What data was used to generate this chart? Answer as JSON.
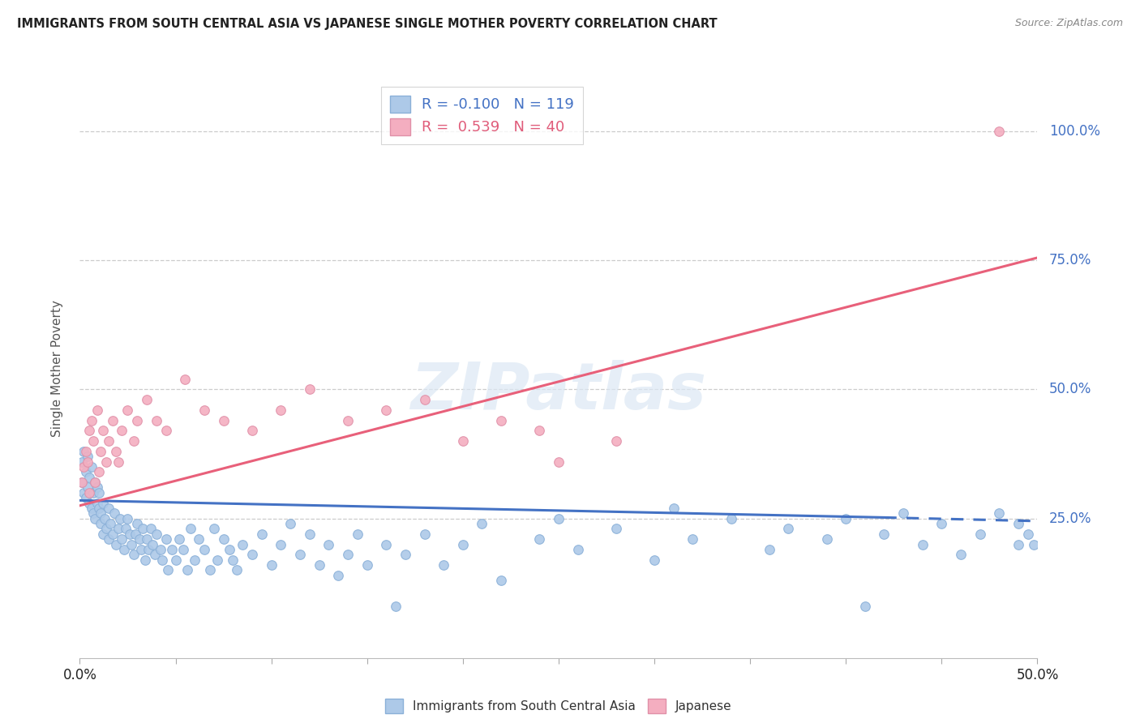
{
  "title": "IMMIGRANTS FROM SOUTH CENTRAL ASIA VS JAPANESE SINGLE MOTHER POVERTY CORRELATION CHART",
  "source": "Source: ZipAtlas.com",
  "ylabel": "Single Mother Poverty",
  "xlim": [
    0.0,
    0.5
  ],
  "ylim": [
    -0.02,
    1.1
  ],
  "blue_R": "-0.100",
  "blue_N": "119",
  "pink_R": "0.539",
  "pink_N": "40",
  "blue_color": "#adc9e8",
  "blue_line_color": "#4472c4",
  "pink_color": "#f4aec0",
  "pink_line_color": "#e8607a",
  "legend_label_blue": "Immigrants from South Central Asia",
  "legend_label_pink": "Japanese",
  "watermark": "ZIPatlas",
  "blue_line_x": [
    0.0,
    0.42,
    0.5
  ],
  "blue_line_y": [
    0.285,
    0.252,
    0.245
  ],
  "blue_line_solid_end": 0.42,
  "pink_line_x": [
    0.0,
    0.5
  ],
  "pink_line_y": [
    0.275,
    0.755
  ],
  "blue_scatter_x": [
    0.001,
    0.001,
    0.002,
    0.002,
    0.003,
    0.003,
    0.004,
    0.004,
    0.005,
    0.005,
    0.006,
    0.006,
    0.007,
    0.007,
    0.008,
    0.008,
    0.009,
    0.009,
    0.01,
    0.01,
    0.011,
    0.011,
    0.012,
    0.012,
    0.013,
    0.014,
    0.015,
    0.015,
    0.016,
    0.017,
    0.018,
    0.019,
    0.02,
    0.021,
    0.022,
    0.023,
    0.024,
    0.025,
    0.026,
    0.027,
    0.028,
    0.029,
    0.03,
    0.031,
    0.032,
    0.033,
    0.034,
    0.035,
    0.036,
    0.037,
    0.038,
    0.039,
    0.04,
    0.042,
    0.043,
    0.045,
    0.046,
    0.048,
    0.05,
    0.052,
    0.054,
    0.056,
    0.058,
    0.06,
    0.062,
    0.065,
    0.068,
    0.07,
    0.072,
    0.075,
    0.078,
    0.08,
    0.082,
    0.085,
    0.09,
    0.095,
    0.1,
    0.105,
    0.11,
    0.115,
    0.12,
    0.125,
    0.13,
    0.135,
    0.14,
    0.145,
    0.15,
    0.16,
    0.165,
    0.17,
    0.18,
    0.19,
    0.2,
    0.21,
    0.22,
    0.24,
    0.25,
    0.26,
    0.28,
    0.3,
    0.31,
    0.32,
    0.34,
    0.36,
    0.37,
    0.39,
    0.4,
    0.41,
    0.42,
    0.43,
    0.44,
    0.45,
    0.46,
    0.47,
    0.48,
    0.49,
    0.49,
    0.495,
    0.498
  ],
  "blue_scatter_y": [
    0.32,
    0.36,
    0.3,
    0.38,
    0.29,
    0.34,
    0.31,
    0.37,
    0.28,
    0.33,
    0.35,
    0.27,
    0.3,
    0.26,
    0.32,
    0.25,
    0.28,
    0.31,
    0.3,
    0.27,
    0.26,
    0.24,
    0.28,
    0.22,
    0.25,
    0.23,
    0.27,
    0.21,
    0.24,
    0.22,
    0.26,
    0.2,
    0.23,
    0.25,
    0.21,
    0.19,
    0.23,
    0.25,
    0.22,
    0.2,
    0.18,
    0.22,
    0.24,
    0.21,
    0.19,
    0.23,
    0.17,
    0.21,
    0.19,
    0.23,
    0.2,
    0.18,
    0.22,
    0.19,
    0.17,
    0.21,
    0.15,
    0.19,
    0.17,
    0.21,
    0.19,
    0.15,
    0.23,
    0.17,
    0.21,
    0.19,
    0.15,
    0.23,
    0.17,
    0.21,
    0.19,
    0.17,
    0.15,
    0.2,
    0.18,
    0.22,
    0.16,
    0.2,
    0.24,
    0.18,
    0.22,
    0.16,
    0.2,
    0.14,
    0.18,
    0.22,
    0.16,
    0.2,
    0.08,
    0.18,
    0.22,
    0.16,
    0.2,
    0.24,
    0.13,
    0.21,
    0.25,
    0.19,
    0.23,
    0.17,
    0.27,
    0.21,
    0.25,
    0.19,
    0.23,
    0.21,
    0.25,
    0.08,
    0.22,
    0.26,
    0.2,
    0.24,
    0.18,
    0.22,
    0.26,
    0.2,
    0.24,
    0.22,
    0.2
  ],
  "pink_scatter_x": [
    0.001,
    0.002,
    0.003,
    0.004,
    0.005,
    0.005,
    0.006,
    0.007,
    0.008,
    0.009,
    0.01,
    0.011,
    0.012,
    0.014,
    0.015,
    0.017,
    0.019,
    0.02,
    0.022,
    0.025,
    0.028,
    0.03,
    0.035,
    0.04,
    0.045,
    0.055,
    0.065,
    0.075,
    0.09,
    0.105,
    0.12,
    0.14,
    0.16,
    0.18,
    0.2,
    0.22,
    0.24,
    0.25,
    0.28,
    0.48
  ],
  "pink_scatter_y": [
    0.32,
    0.35,
    0.38,
    0.36,
    0.42,
    0.3,
    0.44,
    0.4,
    0.32,
    0.46,
    0.34,
    0.38,
    0.42,
    0.36,
    0.4,
    0.44,
    0.38,
    0.36,
    0.42,
    0.46,
    0.4,
    0.44,
    0.48,
    0.44,
    0.42,
    0.52,
    0.46,
    0.44,
    0.42,
    0.46,
    0.5,
    0.44,
    0.46,
    0.48,
    0.4,
    0.44,
    0.42,
    0.36,
    0.4,
    1.0
  ]
}
